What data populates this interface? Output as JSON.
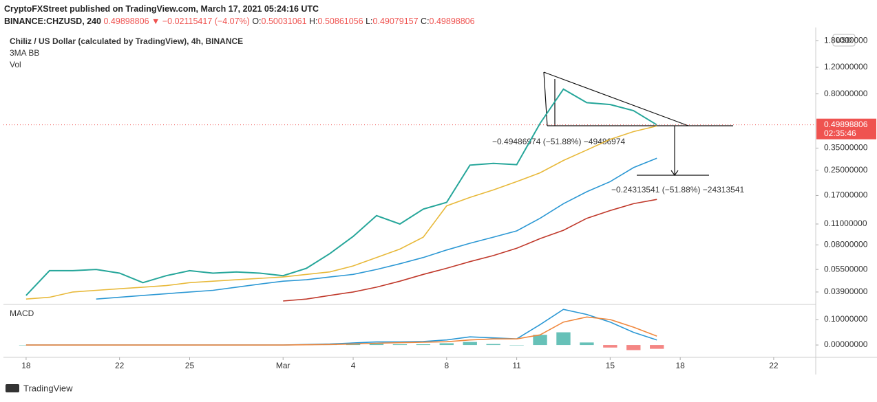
{
  "header": {
    "publisher": "CryptoFXStreet published on TradingView.com, March 17, 2021 05:24:16 UTC",
    "symbol": "BINANCE:CHZUSD, 240",
    "last": 0.49898806,
    "direction": "▼",
    "change": "−0.02115417 (−4.07%)",
    "ohlc": [
      {
        "label": "O:",
        "value": 0.50031061
      },
      {
        "label": "H:",
        "value": 0.50861056
      },
      {
        "label": "L:",
        "value": 0.49079157
      },
      {
        "label": "C:",
        "value": 0.49898806
      }
    ]
  },
  "chart_data": [
    {
      "type": "line",
      "title": "Chiliz / US Dollar (calculated by TradingView), 4h, BINANCE",
      "indicators": [
        "3MA BB",
        "Vol"
      ],
      "currency": "USD",
      "log_scale": true,
      "x": [
        0,
        1,
        2,
        3,
        4,
        5,
        6,
        7,
        8,
        9,
        10,
        11,
        12,
        13,
        14,
        15,
        16,
        17,
        18,
        19,
        20,
        21,
        22,
        23,
        24,
        25,
        26,
        27
      ],
      "xlim": [
        -0.97,
        33.8
      ],
      "ylim": [
        0.0333,
        2.09
      ],
      "yticks": [
        {
          "value": 1.8,
          "label": "1.80000000"
        },
        {
          "value": 1.2,
          "label": "1.20000000"
        },
        {
          "value": 0.8,
          "label": "0.80000000"
        },
        {
          "value": 0.35,
          "label": "0.35000000"
        },
        {
          "value": 0.25,
          "label": "0.25000000"
        },
        {
          "value": 0.17,
          "label": "0.17000000"
        },
        {
          "value": 0.11,
          "label": "0.11000000"
        },
        {
          "value": 0.08,
          "label": "0.08000000"
        },
        {
          "value": 0.055,
          "label": "0.05500000"
        },
        {
          "value": 0.039,
          "label": "0.03900000"
        }
      ],
      "current_price": 0.49898806,
      "countdown": "02:35:46",
      "series": [
        {
          "color": "#26a69a",
          "values": [
            0.037,
            0.054,
            0.054,
            0.055,
            0.052,
            0.045,
            0.05,
            0.054,
            0.052,
            0.053,
            0.052,
            0.05,
            0.056,
            0.07,
            0.091,
            0.125,
            0.11,
            0.138,
            0.153,
            0.27,
            0.277,
            0.272,
            0.51,
            0.86,
            0.7,
            0.68,
            0.62,
            0.499
          ]
        },
        {
          "color": "#e8b93a",
          "values": [
            0.035,
            0.036,
            0.039,
            0.04,
            0.041,
            0.042,
            0.043,
            0.045,
            0.046,
            0.047,
            0.048,
            0.049,
            0.051,
            0.053,
            0.058,
            0.066,
            0.075,
            0.09,
            0.145,
            0.165,
            0.185,
            0.21,
            0.24,
            0.29,
            0.34,
            0.4,
            0.45,
            0.49
          ]
        },
        {
          "color": "#2c98d4",
          "values": [
            null,
            null,
            null,
            0.035,
            0.036,
            0.037,
            0.038,
            0.039,
            0.04,
            0.042,
            0.044,
            0.046,
            0.047,
            0.049,
            0.051,
            0.055,
            0.06,
            0.066,
            0.074,
            0.082,
            0.09,
            0.099,
            0.12,
            0.15,
            0.18,
            0.21,
            0.26,
            0.3
          ]
        },
        {
          "color": "#c0392b",
          "values": [
            null,
            null,
            null,
            null,
            null,
            null,
            null,
            null,
            null,
            null,
            null,
            0.034,
            0.035,
            0.037,
            0.039,
            0.042,
            0.046,
            0.051,
            0.056,
            0.062,
            0.068,
            0.076,
            0.088,
            0.1,
            0.12,
            0.135,
            0.15,
            0.16
          ]
        }
      ],
      "annotations": [
        "−0.49486974 (−51.88%) −49486974",
        "−0.24313541 (−51.88%) −24313541"
      ]
    },
    {
      "type": "line",
      "title": "MACD",
      "x": [
        0,
        1,
        2,
        3,
        4,
        5,
        6,
        7,
        8,
        9,
        10,
        11,
        12,
        13,
        14,
        15,
        16,
        17,
        18,
        19,
        20,
        21,
        22,
        23,
        24,
        25,
        26,
        27
      ],
      "xlim": [
        -0.97,
        33.8
      ],
      "xticks": [
        {
          "value": 0,
          "label": "18"
        },
        {
          "value": 4,
          "label": "22"
        },
        {
          "value": 7,
          "label": "25"
        },
        {
          "value": 11,
          "label": "Mar"
        },
        {
          "value": 14,
          "label": "4"
        },
        {
          "value": 18,
          "label": "8"
        },
        {
          "value": 21,
          "label": "11"
        },
        {
          "value": 25,
          "label": "15"
        },
        {
          "value": 28,
          "label": "18"
        },
        {
          "value": 32,
          "label": "22"
        }
      ],
      "ylim": [
        -0.043,
        0.146
      ],
      "yticks": [
        {
          "value": 0.1,
          "label": "0.10000000"
        },
        {
          "value": 0,
          "label": "0.00000000"
        }
      ],
      "histogram": {
        "color": "#26a69a",
        "negative_color": "#ef5350",
        "values": [
          0,
          0,
          0,
          0,
          0,
          0,
          0,
          0,
          0,
          0,
          0,
          0,
          0.001,
          0.002,
          0.004,
          0.005,
          0.003,
          0.003,
          0.007,
          0.012,
          0.004,
          0,
          0.04,
          0.05,
          0.01,
          -0.01,
          -0.02,
          -0.015
        ]
      },
      "series": [
        {
          "color": "#2c98d4",
          "values": [
            0,
            0,
            0,
            0,
            0,
            0,
            0,
            0,
            0,
            0,
            0,
            0,
            0.002,
            0.004,
            0.008,
            0.012,
            0.012,
            0.014,
            0.02,
            0.032,
            0.028,
            0.024,
            0.08,
            0.14,
            0.12,
            0.09,
            0.05,
            0.02
          ]
        },
        {
          "color": "#f0883e",
          "values": [
            0,
            0,
            0,
            0,
            0,
            0,
            0,
            0,
            0,
            0,
            0,
            0,
            0.001,
            0.002,
            0.004,
            0.007,
            0.009,
            0.011,
            0.013,
            0.02,
            0.024,
            0.024,
            0.04,
            0.09,
            0.11,
            0.1,
            0.07,
            0.035
          ]
        }
      ]
    }
  ],
  "footer": {
    "brand": "TradingView"
  }
}
